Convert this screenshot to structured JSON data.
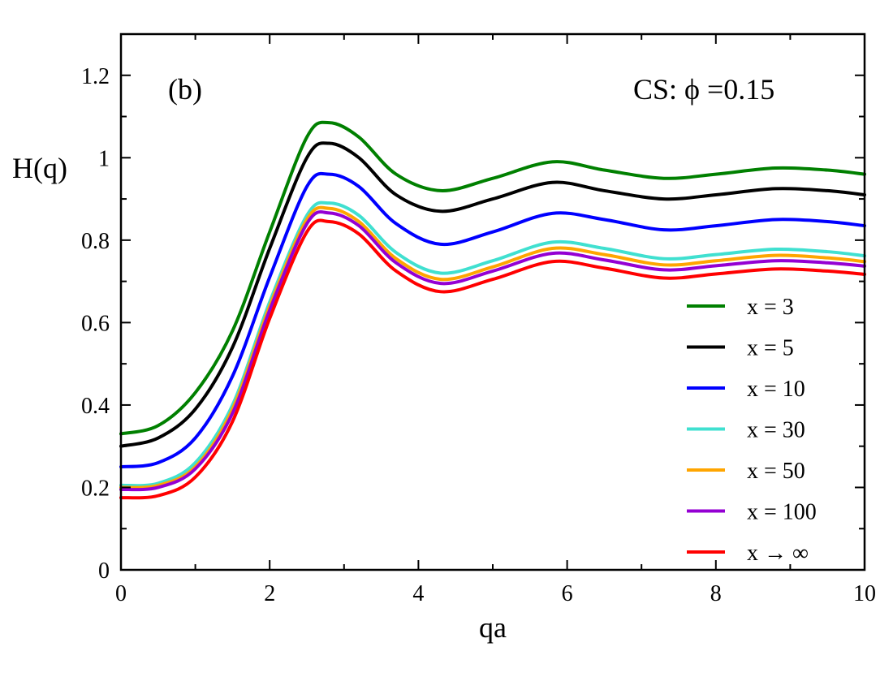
{
  "chart_data": {
    "type": "line",
    "xlabel": "qa",
    "ylabel": "H(q)",
    "xlim": [
      0,
      10
    ],
    "ylim": [
      0,
      1.3
    ],
    "x_ticks": [
      "0",
      "2",
      "4",
      "6",
      "8",
      "10"
    ],
    "y_ticks": [
      "0",
      "0.2",
      "0.4",
      "0.6",
      "0.8",
      "1",
      "1.2"
    ],
    "panel_label": "(b)",
    "annotation": "CS: ϕ =0.15",
    "grid": false,
    "legend_position": "right",
    "series": [
      {
        "name": "x = 3",
        "color": "#008000",
        "x": [
          0,
          0.5,
          1.0,
          1.5,
          2.0,
          2.5,
          2.8,
          3.2,
          3.7,
          4.3,
          5.0,
          5.8,
          6.5,
          7.3,
          8.0,
          8.8,
          9.5,
          10
        ],
        "y": [
          0.33,
          0.35,
          0.43,
          0.58,
          0.82,
          1.05,
          1.085,
          1.05,
          0.96,
          0.92,
          0.95,
          0.99,
          0.97,
          0.95,
          0.96,
          0.975,
          0.97,
          0.96
        ]
      },
      {
        "name": "x = 5",
        "color": "#000000",
        "x": [
          0,
          0.5,
          1.0,
          1.5,
          2.0,
          2.5,
          2.8,
          3.2,
          3.7,
          4.3,
          5.0,
          5.8,
          6.5,
          7.3,
          8.0,
          8.8,
          9.5,
          10
        ],
        "y": [
          0.3,
          0.32,
          0.39,
          0.54,
          0.78,
          1.0,
          1.035,
          1.0,
          0.91,
          0.87,
          0.9,
          0.94,
          0.92,
          0.9,
          0.91,
          0.925,
          0.92,
          0.91
        ]
      },
      {
        "name": "x = 10",
        "color": "#0000ff",
        "x": [
          0,
          0.5,
          1.0,
          1.5,
          2.0,
          2.5,
          2.8,
          3.2,
          3.7,
          4.3,
          5.0,
          5.8,
          6.5,
          7.3,
          8.0,
          8.8,
          9.5,
          10
        ],
        "y": [
          0.25,
          0.26,
          0.32,
          0.47,
          0.71,
          0.93,
          0.96,
          0.93,
          0.84,
          0.79,
          0.82,
          0.865,
          0.85,
          0.825,
          0.835,
          0.85,
          0.845,
          0.835
        ]
      },
      {
        "name": "x = 30",
        "color": "#40e0d0",
        "x": [
          0,
          0.5,
          1.0,
          1.5,
          2.0,
          2.5,
          2.8,
          3.2,
          3.7,
          4.3,
          5.0,
          5.8,
          6.5,
          7.3,
          8.0,
          8.8,
          9.5,
          10
        ],
        "y": [
          0.205,
          0.21,
          0.26,
          0.4,
          0.65,
          0.86,
          0.89,
          0.86,
          0.77,
          0.72,
          0.75,
          0.795,
          0.78,
          0.755,
          0.765,
          0.778,
          0.772,
          0.762
        ]
      },
      {
        "name": "x = 50",
        "color": "#ffa500",
        "x": [
          0,
          0.5,
          1.0,
          1.5,
          2.0,
          2.5,
          2.8,
          3.2,
          3.7,
          4.3,
          5.0,
          5.8,
          6.5,
          7.3,
          8.0,
          8.8,
          9.5,
          10
        ],
        "y": [
          0.2,
          0.205,
          0.25,
          0.39,
          0.64,
          0.85,
          0.877,
          0.845,
          0.755,
          0.705,
          0.735,
          0.78,
          0.765,
          0.74,
          0.75,
          0.763,
          0.757,
          0.748
        ]
      },
      {
        "name": "x = 100",
        "color": "#9400d3",
        "x": [
          0,
          0.5,
          1.0,
          1.5,
          2.0,
          2.5,
          2.8,
          3.2,
          3.7,
          4.3,
          5.0,
          5.8,
          6.5,
          7.3,
          8.0,
          8.8,
          9.5,
          10
        ],
        "y": [
          0.195,
          0.2,
          0.245,
          0.38,
          0.63,
          0.84,
          0.866,
          0.835,
          0.745,
          0.695,
          0.725,
          0.768,
          0.752,
          0.728,
          0.738,
          0.75,
          0.745,
          0.737
        ]
      },
      {
        "name": "x → ∞",
        "color": "#ff0000",
        "x": [
          0,
          0.5,
          1.0,
          1.5,
          2.0,
          2.5,
          2.8,
          3.2,
          3.7,
          4.3,
          5.0,
          5.8,
          6.5,
          7.3,
          8.0,
          8.8,
          9.5,
          10
        ],
        "y": [
          0.175,
          0.18,
          0.225,
          0.36,
          0.61,
          0.82,
          0.845,
          0.815,
          0.725,
          0.675,
          0.705,
          0.748,
          0.732,
          0.708,
          0.718,
          0.73,
          0.725,
          0.717
        ]
      }
    ]
  }
}
